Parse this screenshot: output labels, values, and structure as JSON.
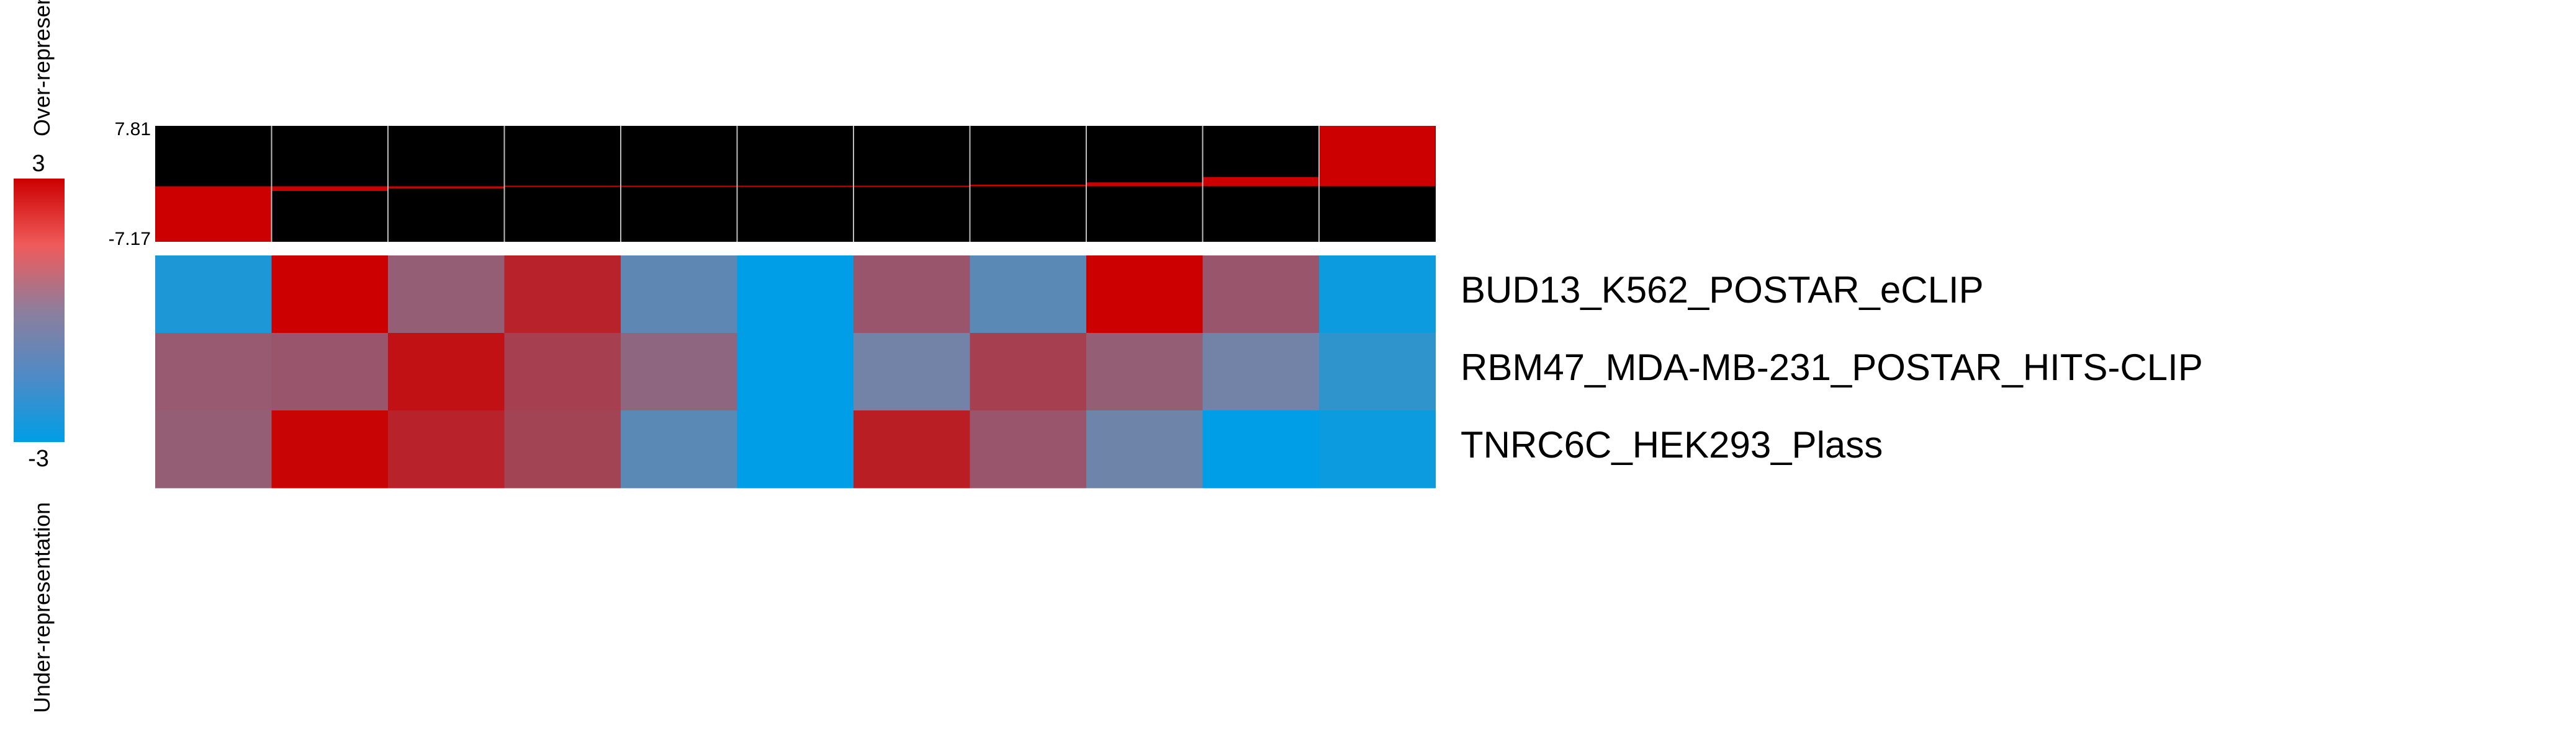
{
  "chart_data": {
    "type": "heatmap",
    "colorbar": {
      "max_label": "3",
      "min_label": "-3",
      "over_label": "Over-representation",
      "under_label": "Under-representation",
      "colors": {
        "high": "#cc0000",
        "mid": "#8080a0",
        "low": "#009ee6"
      },
      "range": [
        -3,
        3
      ]
    },
    "enrichment_track": {
      "max_label": "7.81",
      "min_label": "-7.17",
      "ylim": [
        -7.17,
        7.81
      ],
      "values": [
        -7.17,
        -0.6,
        -0.3,
        -0.15,
        -0.05,
        0.0,
        0.05,
        0.2,
        0.5,
        1.2,
        7.81
      ],
      "bar_color": "#cc0000",
      "background": "#000000"
    },
    "rows": [
      "BUD13_K562_POSTAR_eCLIP",
      "RBM47_MDA-MB-231_POSTAR_HITS-CLIP",
      "TNRC6C_HEK293_Plass"
    ],
    "columns": 11,
    "values": [
      [
        -2.3,
        3.0,
        0.8,
        2.2,
        -0.8,
        -3.0,
        1.0,
        -0.9,
        3.0,
        1.0,
        -2.7
      ],
      [
        0.9,
        1.0,
        2.6,
        1.5,
        0.6,
        -3.0,
        -0.3,
        1.5,
        0.8,
        -0.3,
        -1.9
      ],
      [
        0.8,
        2.9,
        2.2,
        1.4,
        -0.9,
        -3.0,
        2.3,
        1.0,
        -0.4,
        -3.0,
        -2.7
      ]
    ]
  }
}
